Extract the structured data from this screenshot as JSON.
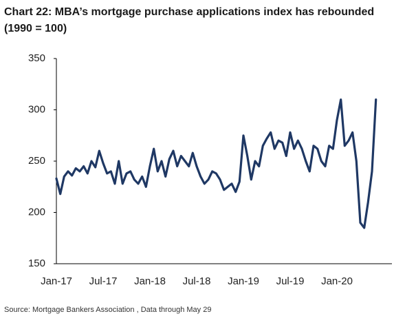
{
  "chart_data": {
    "type": "line",
    "title": "Chart 22: MBA’s mortgage purchase applications index has rebounded",
    "subtitle": "(1990 = 100)",
    "source": "Source: Mortgage Bankers Association , Data through May 29",
    "categories": [
      "Jan-17",
      null,
      null,
      null,
      null,
      null,
      null,
      null,
      null,
      null,
      null,
      null,
      "Jul-17",
      null,
      null,
      null,
      null,
      null,
      null,
      null,
      null,
      null,
      null,
      null,
      "Jan-18",
      null,
      null,
      null,
      null,
      null,
      null,
      null,
      null,
      null,
      null,
      null,
      "Jul-18",
      null,
      null,
      null,
      null,
      null,
      null,
      null,
      null,
      null,
      null,
      null,
      "Jan-19",
      null,
      null,
      null,
      null,
      null,
      null,
      null,
      null,
      null,
      null,
      null,
      "Jul-19",
      null,
      null,
      null,
      null,
      null,
      null,
      null,
      null,
      null,
      null,
      null,
      "Jan-20",
      null,
      null,
      null,
      null,
      null,
      null,
      null,
      null,
      null,
      null
    ],
    "series": [
      {
        "color": "#1f3864",
        "values": [
          233,
          218,
          235,
          240,
          236,
          243,
          240,
          245,
          238,
          250,
          244,
          260,
          248,
          238,
          240,
          228,
          250,
          228,
          238,
          240,
          232,
          228,
          235,
          225,
          245,
          262,
          240,
          250,
          235,
          252,
          260,
          245,
          255,
          250,
          245,
          258,
          245,
          235,
          228,
          232,
          240,
          238,
          232,
          222,
          225,
          228,
          220,
          230,
          275,
          255,
          232,
          250,
          245,
          265,
          272,
          278,
          262,
          270,
          268,
          255,
          278,
          262,
          270,
          262,
          250,
          240,
          265,
          262,
          250,
          245,
          265,
          262,
          290,
          310,
          265,
          270,
          278,
          250,
          190,
          185,
          210,
          240,
          310
        ]
      }
    ],
    "ylim": [
      150,
      350
    ],
    "yticks": [
      150,
      200,
      250,
      300,
      350
    ],
    "grid": false
  }
}
